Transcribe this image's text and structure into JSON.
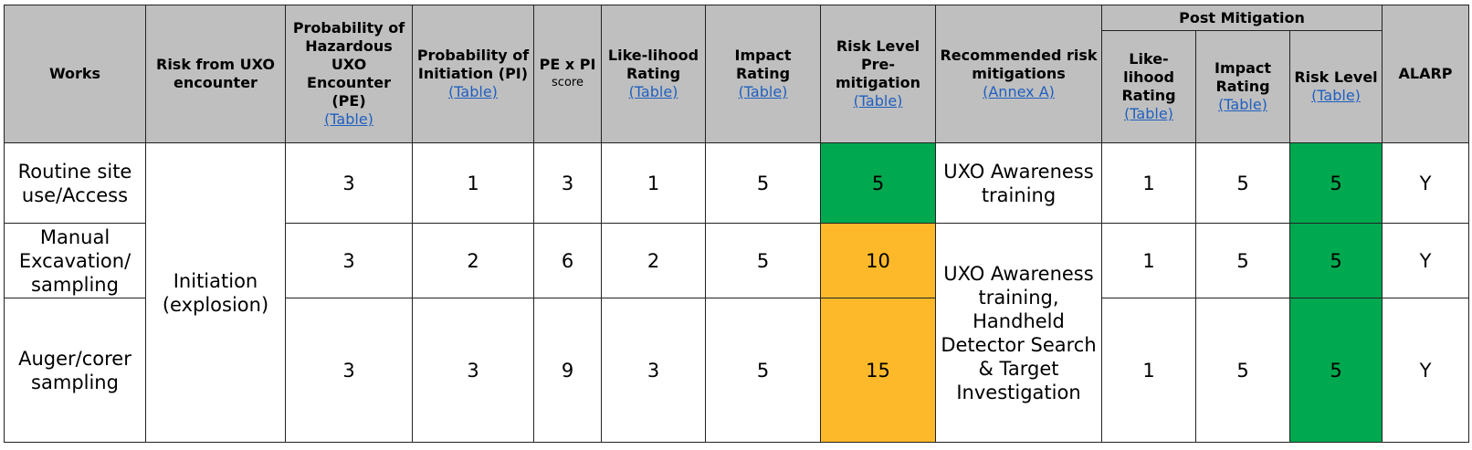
{
  "table": {
    "header": {
      "columns": [
        {
          "label": "Works"
        },
        {
          "label": "Risk from UXO encounter"
        },
        {
          "label": "Probability of Hazardous UXO Encounter (PE)",
          "link": "(Table)"
        },
        {
          "label": "Probability of Initiation (PI)",
          "link": "(Table)"
        },
        {
          "label": "PE x PI",
          "note": "score"
        },
        {
          "label": "Like-lihood Rating",
          "link": "(Table)"
        },
        {
          "label": "Impact Rating",
          "link": "(Table)"
        },
        {
          "label": "Risk Level Pre-mitigation",
          "link": "(Table)"
        },
        {
          "label": "Recommended risk mitigations",
          "link": "(Annex A)"
        },
        {
          "label": "Post Mitigation",
          "subcolumns": [
            {
              "label": "Like-lihood Rating",
              "link": "(Table)"
            },
            {
              "label": "Impact Rating",
              "link": "(Table)"
            },
            {
              "label": "Risk Level",
              "link": "(Table)"
            }
          ]
        },
        {
          "label": "ALARP"
        }
      ]
    },
    "risk": "Initiation (explosion)",
    "rows": [
      {
        "works": "Routine site use/Access",
        "pe": 3,
        "pi": 1,
        "pe_x_pi": 3,
        "likelihood": 1,
        "impact": 5,
        "risk_level": 5,
        "mitigations": "UXO Awareness training",
        "post_likelihood": 1,
        "post_impact": 5,
        "post_risk_level": 5,
        "alarp": "Y"
      },
      {
        "works": "Manual Excavation/ sampling",
        "pe": 3,
        "pi": 2,
        "pe_x_pi": 6,
        "likelihood": 2,
        "impact": 5,
        "risk_level": 10,
        "mitigations": "UXO Awareness training, Handheld Detector Search & Target Investigation",
        "post_likelihood": 1,
        "post_impact": 5,
        "post_risk_level": 5,
        "alarp": "Y"
      },
      {
        "works": "Auger/corer sampling",
        "pe": 3,
        "pi": 3,
        "pe_x_pi": 9,
        "likelihood": 3,
        "impact": 5,
        "risk_level": 15,
        "post_likelihood": 1,
        "post_impact": 5,
        "post_risk_level": 5,
        "alarp": "Y"
      }
    ]
  }
}
